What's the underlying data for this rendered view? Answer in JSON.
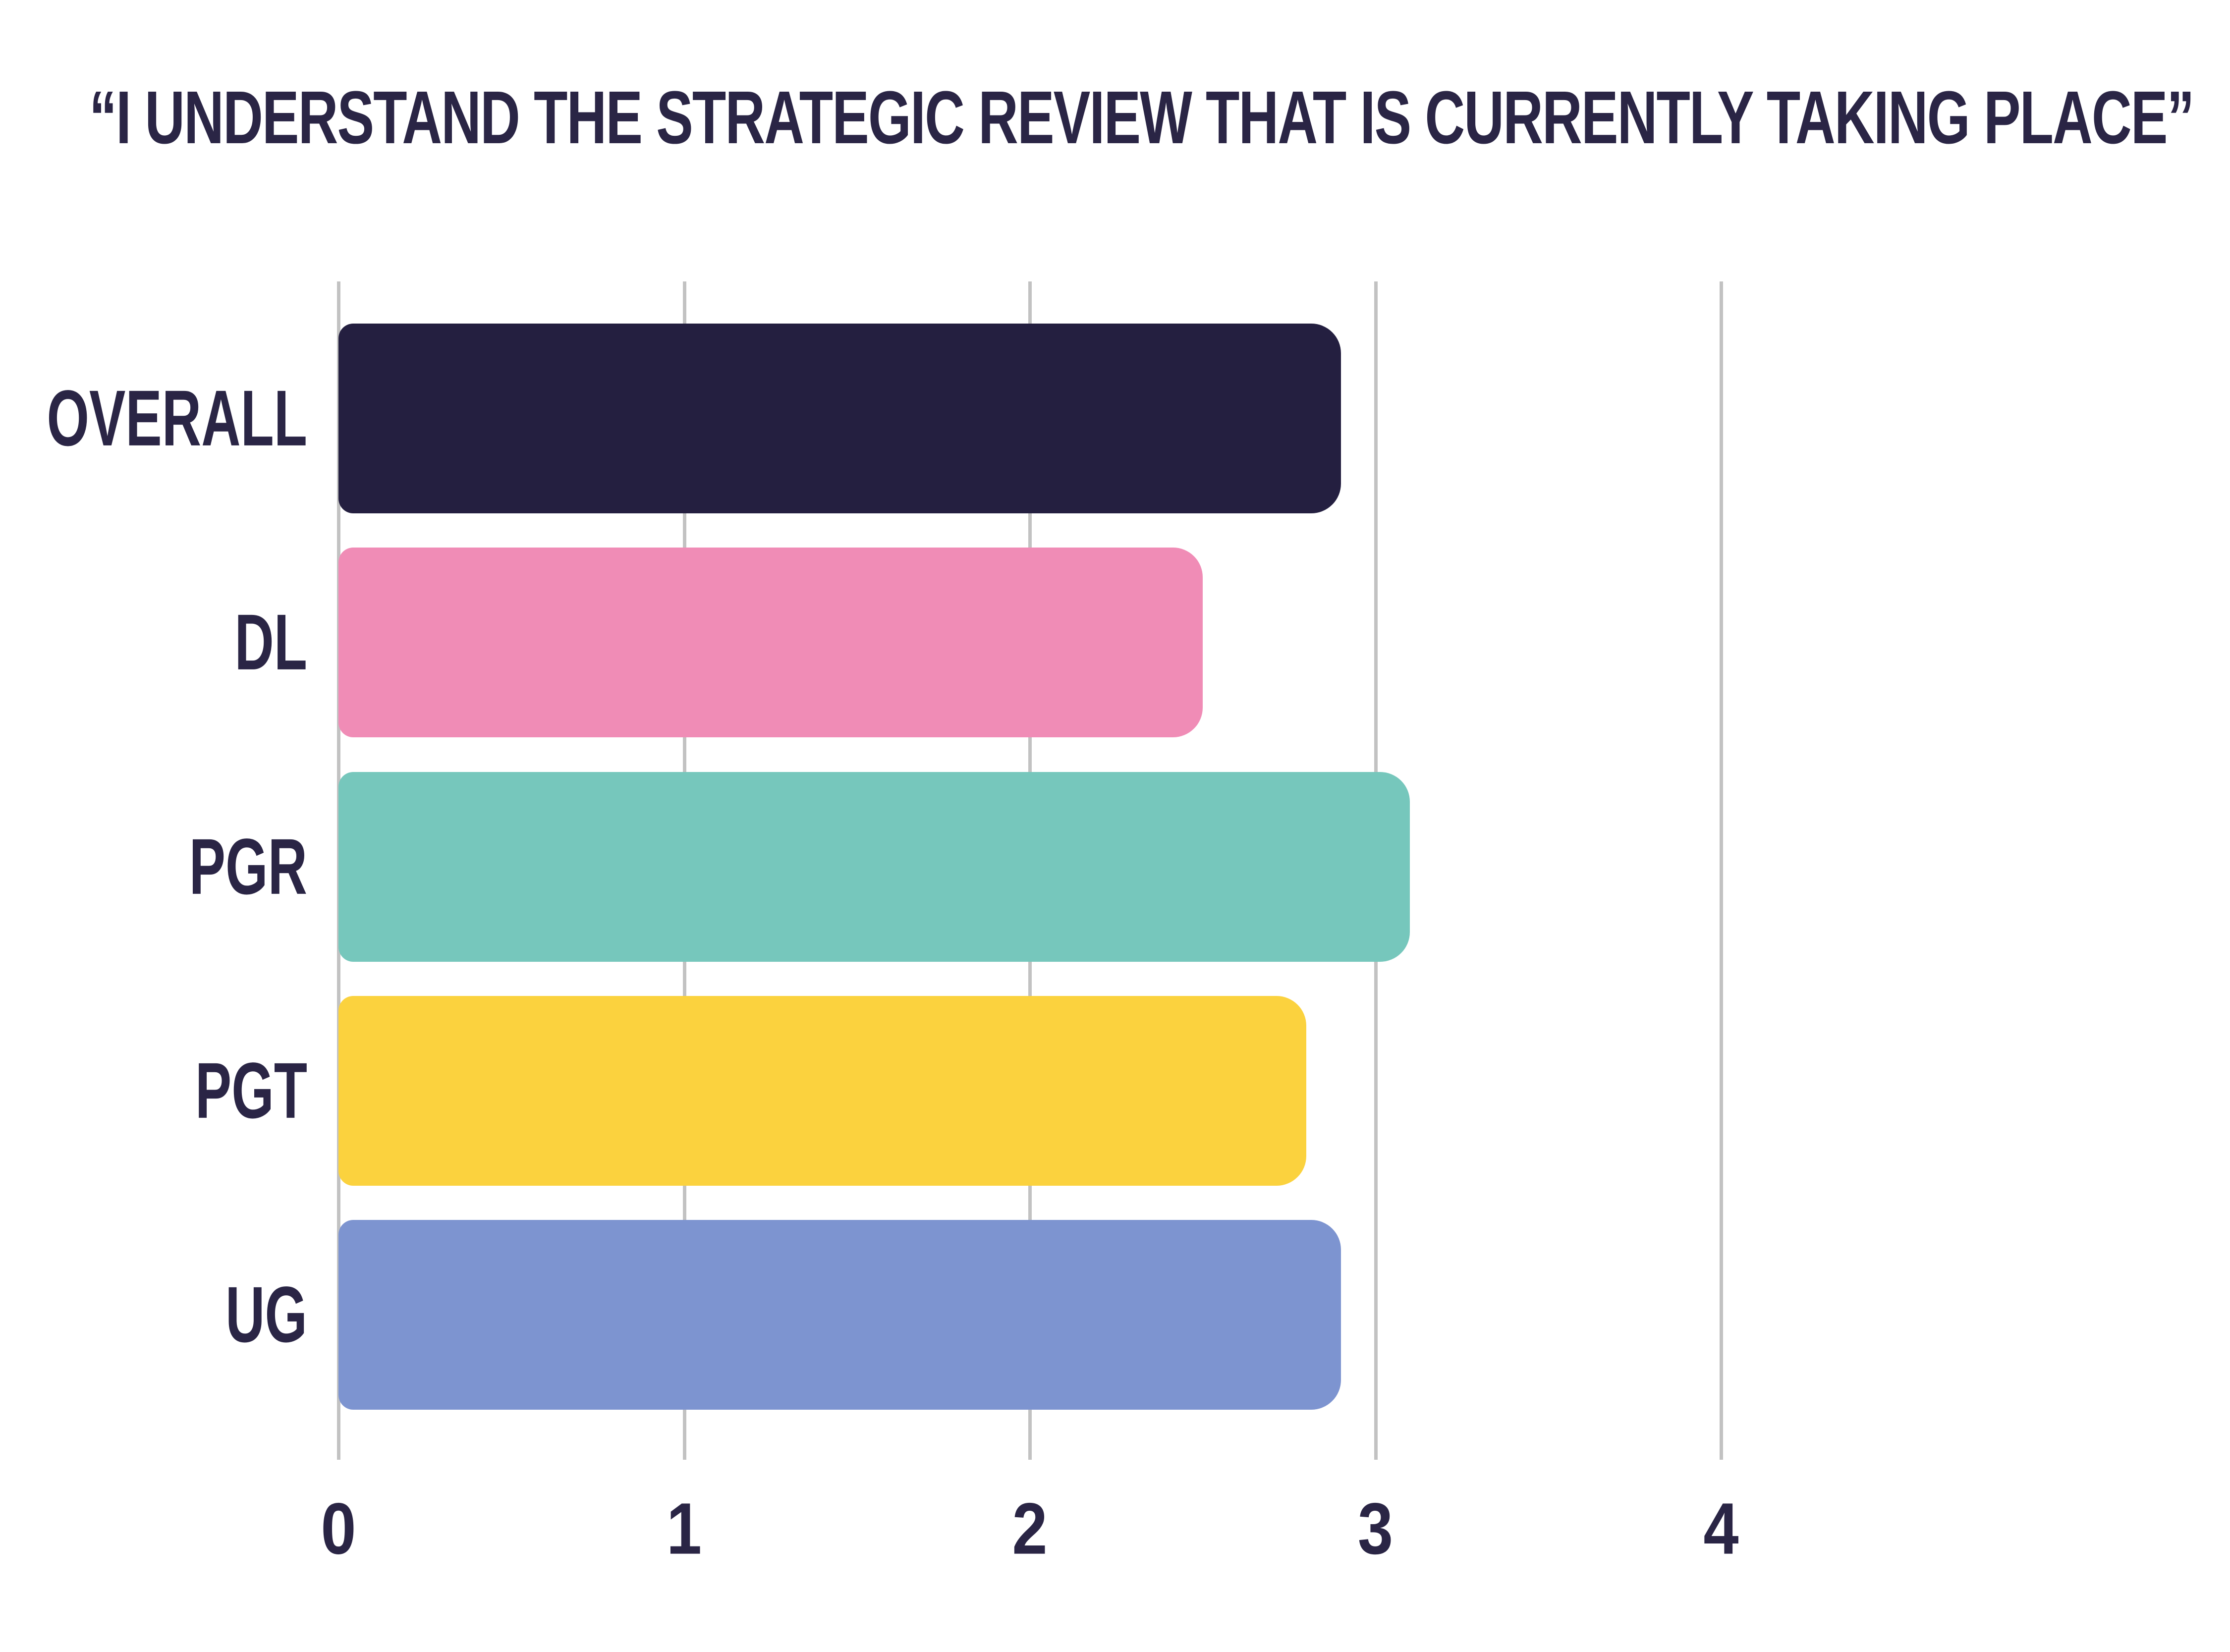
{
  "chart_data": {
    "type": "bar",
    "orientation": "horizontal",
    "title": "“I UNDERSTAND THE STRATEGIC REVIEW THAT IS CURRENTLY TAKING PLACE”",
    "categories": [
      "OVERALL",
      "DL",
      "PGR",
      "PGT",
      "UG"
    ],
    "values": [
      2.9,
      2.5,
      3.1,
      2.8,
      2.9
    ],
    "xlabel": "",
    "ylabel": "",
    "xlim": [
      0,
      4
    ],
    "x_ticks": [
      "0",
      "1",
      "2",
      "3",
      "4"
    ],
    "x_tick_values": [
      0,
      1,
      2,
      3,
      4
    ],
    "grid": "vertical-gridlines-only",
    "legend": "none",
    "bar_colors": [
      "#241F40",
      "#F08CB6",
      "#76C7BC",
      "#FBD23E",
      "#7D94D0"
    ]
  },
  "style": {
    "background": "#FFFFFF",
    "text_color": "#2A2545",
    "gridline_color": "#C2C2C2"
  }
}
